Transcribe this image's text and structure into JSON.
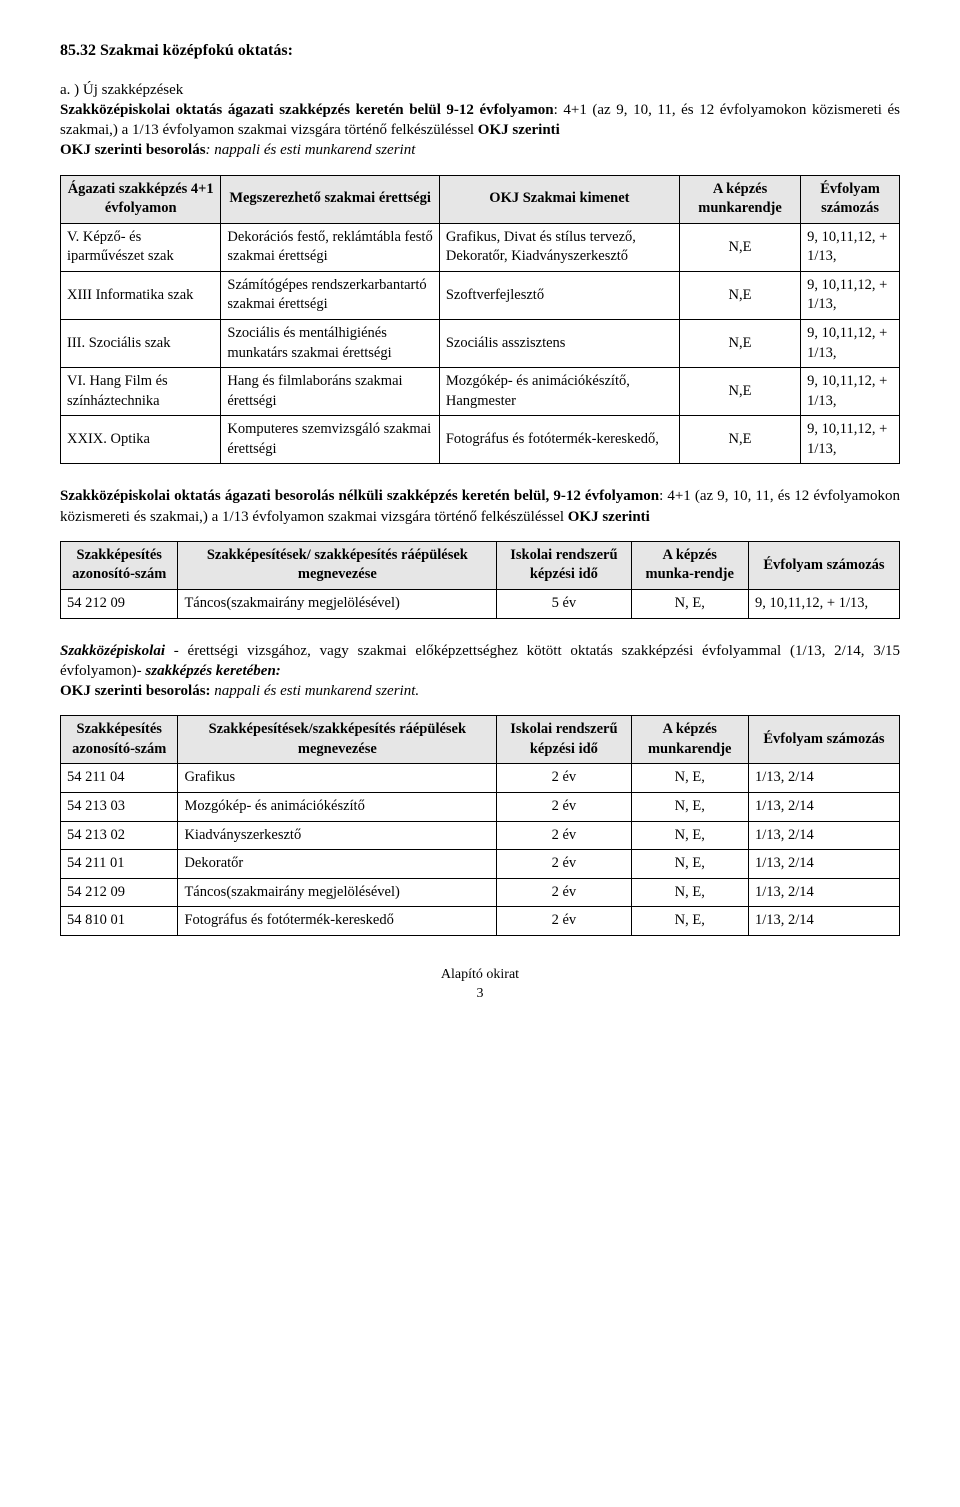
{
  "heading": "85.32 Szakmai középfokú oktatás:",
  "intro_lead": "a. ) Új szakképzések",
  "intro_para1_prefix": "Szakközépiskolai oktatás ágazati szakképzés keretén belül 9-12 évfolyamon",
  "intro_para1_rest": ": 4+1 (az 9, 10, 11, és 12 évfolyamokon közismereti és szakmai,) a 1/13 évfolyamon szakmai vizsgára történő felkészüléssel ",
  "intro_okj": "OKJ szerinti",
  "intro_line2_prefix": "OKJ szerinti besorolás",
  "intro_line2_rest": ": nappali és esti munkarend szerint",
  "table1": {
    "headers": [
      "Ágazati szakképzés 4+1 évfolyamon",
      "Megszerezhető szakmai érettségi",
      "OKJ Szakmai kimenet",
      "A képzés munkarendje",
      "Évfolyam számozás"
    ],
    "rows": [
      [
        "V. Képző- és iparművészet szak",
        "Dekorációs festő, reklámtábla festő szakmai érettségi",
        "Grafikus, Divat és stílus tervező, Dekoratőr, Kiadványszerkesztő",
        "N,E",
        "9, 10,11,12, + 1/13,"
      ],
      [
        "XIII Informatika szak",
        "Számítógépes rendszerkarbantartó szakmai érettségi",
        "Szoftverfejlesztő",
        "N,E",
        "9, 10,11,12, + 1/13,"
      ],
      [
        "III. Szociális szak",
        "Szociális és mentálhigiénés munkatárs szakmai érettségi",
        "Szociális asszisztens",
        "N,E",
        "9, 10,11,12, + 1/13,"
      ],
      [
        "VI. Hang Film és színháztechnika",
        "Hang és filmlaboráns szakmai érettségi",
        "Mozgókép- és animációkészítő, Hangmester",
        "N,E",
        "9, 10,11,12, + 1/13,"
      ],
      [
        "XXIX. Optika",
        "Komputeres szemvizsgáló szakmai érettségi",
        "Fotográfus és fotótermék-kereskedő,",
        "N,E",
        "9, 10,11,12, + 1/13,"
      ]
    ]
  },
  "mid_para_prefix": "Szakközépiskolai oktatás ágazati besorolás nélküli szakképzés keretén belül, 9-12 évfolyamon",
  "mid_para_rest": ": 4+1 (az 9, 10, 11, és 12 évfolyamokon közismereti és szakmai,) a 1/13 évfolyamon szakmai vizsgára történő felkészüléssel ",
  "mid_okj": "OKJ szerinti",
  "table2": {
    "headers": [
      "Szakképesítés azonosító-szám",
      "Szakképesítések/ szakképesítés ráépülések megnevezése",
      "Iskolai rendszerű képzési idő",
      "A képzés munka-rendje",
      "Évfolyam számozás"
    ],
    "rows": [
      [
        "54 212 09",
        "Táncos(szakmairány megjelölésével)",
        "5 év",
        "N, E,",
        "9, 10,11,12, + 1/13,"
      ]
    ]
  },
  "mid2_line1_prefix": "Szakközépiskolai",
  "mid2_line1_rest": " - érettségi vizsgához, vagy szakmai előképzettséghez kötött oktatás szakképzési évfolyammal (1/13, 2/14, 3/15 évfolyamon)- ",
  "mid2_suffix": "szakképzés keretében:",
  "mid2_line2_prefix": "OKJ szerinti besorolás:",
  "mid2_line2_rest": " nappali és esti munkarend szerint.",
  "table3": {
    "headers": [
      "Szakképesítés azonosító-szám",
      "Szakképesítések/szakképesítés ráépülések megnevezése",
      "Iskolai rendszerű képzési idő",
      "A képzés munkarendje",
      "Évfolyam számozás"
    ],
    "rows": [
      [
        "54 211 04",
        "Grafikus",
        "2 év",
        "N, E,",
        "1/13, 2/14"
      ],
      [
        "54 213 03",
        "Mozgókép- és animációkészítő",
        "2 év",
        "N, E,",
        "1/13, 2/14"
      ],
      [
        "54 213 02",
        "Kiadványszerkesztő",
        "2 év",
        "N, E,",
        "1/13, 2/14"
      ],
      [
        "54 211 01",
        "Dekoratőr",
        "2 év",
        "N, E,",
        "1/13, 2/14"
      ],
      [
        "54 212 09",
        "Táncos(szakmairány megjelölésével)",
        "2 év",
        "N, E,",
        "1/13, 2/14"
      ],
      [
        "54 810 01",
        "Fotográfus és fotótermék-kereskedő",
        "2 év",
        "N, E,",
        "1/13, 2/14"
      ]
    ]
  },
  "footer_line1": "Alapító okirat",
  "footer_line2": "3"
}
